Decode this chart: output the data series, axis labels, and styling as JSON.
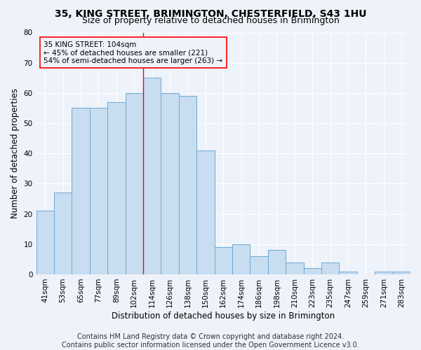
{
  "title_line1": "35, KING STREET, BRIMINGTON, CHESTERFIELD, S43 1HU",
  "title_line2": "Size of property relative to detached houses in Brimington",
  "xlabel": "Distribution of detached houses by size in Brimington",
  "ylabel": "Number of detached properties",
  "categories": [
    "41sqm",
    "53sqm",
    "65sqm",
    "77sqm",
    "89sqm",
    "102sqm",
    "114sqm",
    "126sqm",
    "138sqm",
    "150sqm",
    "162sqm",
    "174sqm",
    "186sqm",
    "198sqm",
    "210sqm",
    "223sqm",
    "235sqm",
    "247sqm",
    "259sqm",
    "271sqm",
    "283sqm"
  ],
  "values": [
    21,
    27,
    55,
    55,
    57,
    60,
    65,
    60,
    59,
    41,
    9,
    10,
    6,
    8,
    4,
    2,
    4,
    1,
    0,
    1,
    1
  ],
  "bar_color": "#c9ddf0",
  "bar_edge_color": "#6aaad4",
  "annotation_line1": "35 KING STREET: 104sqm",
  "annotation_line2": "← 45% of detached houses are smaller (221)",
  "annotation_line3": "54% of semi-detached houses are larger (263) →",
  "vline_x_index": 5.5,
  "vline_color": "red",
  "annotation_box_color": "red",
  "ylim": [
    0,
    80
  ],
  "yticks": [
    0,
    10,
    20,
    30,
    40,
    50,
    60,
    70,
    80
  ],
  "background_color": "#eef2fa",
  "grid_color": "#ffffff",
  "title_fontsize": 10,
  "subtitle_fontsize": 9,
  "axis_label_fontsize": 8.5,
  "tick_fontsize": 7.5,
  "footer_fontsize": 7,
  "footer_line1": "Contains HM Land Registry data © Crown copyright and database right 2024.",
  "footer_line2": "Contains public sector information licensed under the Open Government Licence v3.0."
}
